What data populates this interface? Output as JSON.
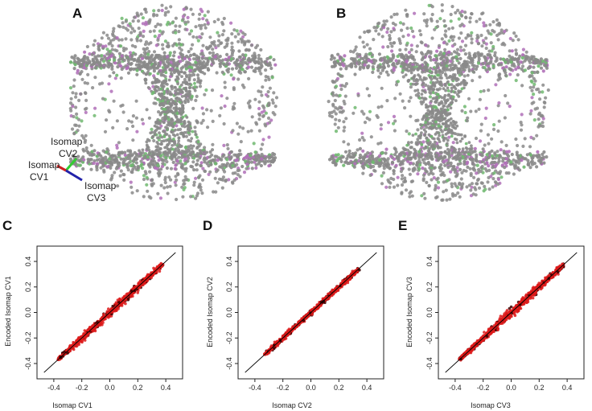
{
  "panels": {
    "A": "A",
    "B": "B",
    "C": "C",
    "D": "D",
    "E": "E"
  },
  "axes_legend": {
    "cv1": [
      "Isomap",
      "CV1"
    ],
    "cv2": [
      "Isomap",
      "CV2"
    ],
    "cv3": [
      "Isomap",
      "CV3"
    ],
    "colors": {
      "cv1": "#cc2222",
      "cv2": "#33cc33",
      "cv3": "#2222aa"
    }
  },
  "point_colors": {
    "base": "#8a8a8a",
    "accent_pink": "#b070b8",
    "accent_green": "#70b870"
  },
  "chart_data": [
    {
      "type": "scatter",
      "title": "",
      "xlabel": "Isomap CV1",
      "ylabel": "Encoded Isomap CV1",
      "xlim": [
        -0.52,
        0.52
      ],
      "ylim": [
        -0.52,
        0.52
      ],
      "xticks": [
        -0.4,
        -0.2,
        0.0,
        0.2,
        0.4
      ],
      "yticks": [
        -0.4,
        -0.2,
        0.0,
        0.2,
        0.4
      ],
      "tick_labels": [
        "-0.4",
        "-0.2",
        "0.0",
        "0.2",
        "0.4"
      ],
      "grid": false,
      "point_color": "#dd1a1a",
      "reference_line": "y = x",
      "band": [
        [
          -0.37,
          0.006
        ],
        [
          -0.2,
          0.014
        ],
        [
          0.0,
          0.018
        ],
        [
          0.2,
          0.016
        ],
        [
          0.38,
          0.008
        ]
      ]
    },
    {
      "type": "scatter",
      "title": "",
      "xlabel": "Isomap CV2",
      "ylabel": "Encoded Isomap CV2",
      "xlim": [
        -0.52,
        0.52
      ],
      "ylim": [
        -0.52,
        0.52
      ],
      "xticks": [
        -0.4,
        -0.2,
        0.0,
        0.2,
        0.4
      ],
      "yticks": [
        -0.4,
        -0.2,
        0.0,
        0.2,
        0.4
      ],
      "tick_labels": [
        "-0.4",
        "-0.2",
        "0.0",
        "0.2",
        "0.4"
      ],
      "grid": false,
      "point_color": "#dd1a1a",
      "reference_line": "y = x",
      "band": [
        [
          -0.33,
          0.006
        ],
        [
          -0.2,
          0.01
        ],
        [
          -0.05,
          0.008
        ],
        [
          0.1,
          0.01
        ],
        [
          0.25,
          0.012
        ],
        [
          0.34,
          0.006
        ]
      ]
    },
    {
      "type": "scatter",
      "title": "",
      "xlabel": "Isomap CV3",
      "ylabel": "Encoded Isomap CV3",
      "xlim": [
        -0.52,
        0.52
      ],
      "ylim": [
        -0.52,
        0.52
      ],
      "xticks": [
        -0.4,
        -0.2,
        0.0,
        0.2,
        0.4
      ],
      "yticks": [
        -0.4,
        -0.2,
        0.0,
        0.2,
        0.4
      ],
      "tick_labels": [
        "-0.4",
        "-0.2",
        "0.0",
        "0.2",
        "0.4"
      ],
      "grid": false,
      "point_color": "#dd1a1a",
      "reference_line": "y = x",
      "band": [
        [
          -0.37,
          0.006
        ],
        [
          -0.2,
          0.014
        ],
        [
          0.0,
          0.02
        ],
        [
          0.2,
          0.016
        ],
        [
          0.38,
          0.008
        ]
      ]
    }
  ]
}
